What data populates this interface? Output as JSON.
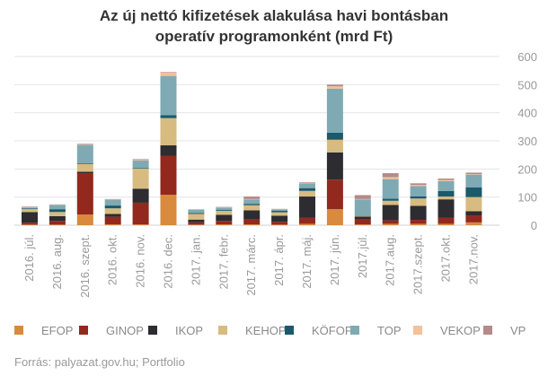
{
  "chart_data": {
    "type": "bar",
    "stacked": true,
    "title_line1": "Az új nettó kifizetések alakulása havi bontásban",
    "title_line2": "operatív programonként (mrd Ft)",
    "ylim": [
      0,
      600
    ],
    "yticks": [
      "0",
      "100",
      "200",
      "300",
      "400",
      "500",
      "600"
    ],
    "categories": [
      "2016. júl.",
      "2016. aug.",
      "2016. szept.",
      "2016. okt.",
      "2016. nov.",
      "2016. dec.",
      "2017. jan.",
      "2017. febr.",
      "2017. márc.",
      "2017. ápr.",
      "2017. máj.",
      "2017. jún.",
      "2017.júl.",
      "2017.aug.",
      "2017.szept.",
      "2017.okt.",
      "2017.nov."
    ],
    "series": [
      {
        "name": "EFOP",
        "color": "#d98a3d",
        "values": [
          2,
          2,
          38,
          3,
          3,
          108,
          2,
          3,
          3,
          2,
          5,
          57,
          3,
          5,
          5,
          5,
          10
        ]
      },
      {
        "name": "GINOP",
        "color": "#93281e",
        "values": [
          7,
          13,
          147,
          27,
          77,
          138,
          8,
          12,
          18,
          10,
          22,
          105,
          18,
          12,
          14,
          22,
          25
        ]
      },
      {
        "name": "IKOP",
        "color": "#2c2c31",
        "values": [
          38,
          17,
          5,
          10,
          50,
          38,
          10,
          22,
          32,
          22,
          75,
          97,
          10,
          55,
          50,
          65,
          15
        ]
      },
      {
        "name": "KEHOP",
        "color": "#d8bb80",
        "values": [
          10,
          15,
          28,
          20,
          72,
          97,
          20,
          14,
          18,
          12,
          20,
          45,
          3,
          15,
          26,
          10,
          50
        ]
      },
      {
        "name": "KÖFOP",
        "color": "#1a5a6a",
        "values": [
          2,
          10,
          3,
          10,
          3,
          10,
          3,
          3,
          5,
          5,
          10,
          25,
          2,
          7,
          8,
          20,
          35
        ]
      },
      {
        "name": "TOP",
        "color": "#7faab3",
        "values": [
          3,
          15,
          65,
          20,
          25,
          140,
          12,
          8,
          15,
          5,
          17,
          157,
          55,
          70,
          36,
          35,
          45
        ]
      },
      {
        "name": "VEKOP",
        "color": "#f2c29a",
        "values": [
          1,
          1,
          2,
          1,
          2,
          12,
          1,
          1,
          2,
          1,
          2,
          8,
          2,
          7,
          4,
          4,
          2
        ]
      },
      {
        "name": "VP",
        "color": "#b48a8a",
        "values": [
          3,
          1,
          2,
          2,
          3,
          2,
          1,
          2,
          9,
          1,
          2,
          6,
          14,
          14,
          6,
          5,
          5
        ]
      }
    ],
    "legend_position": "bottom",
    "gridlines": true,
    "yaxis_side": "right"
  },
  "source_note": "Forrás: palyazat.gov.hu; Portfolio"
}
